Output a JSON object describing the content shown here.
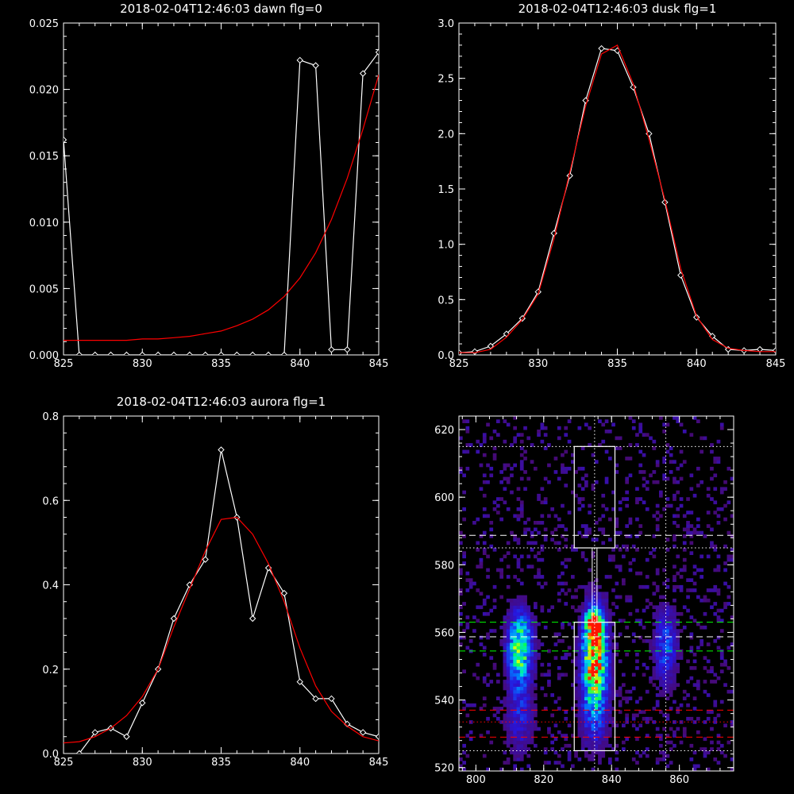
{
  "chart_data": [
    {
      "type": "line",
      "title": "2018-02-04T12:46:03 dawn flg=0",
      "xlim": [
        825,
        845
      ],
      "ylim": [
        0,
        0.025
      ],
      "xticks": [
        "825",
        "830",
        "835",
        "840",
        "845"
      ],
      "yticks": [
        "0.000",
        "0.005",
        "0.010",
        "0.015",
        "0.020",
        "0.025"
      ],
      "series": [
        {
          "color": "#ffffff",
          "markers": "diamond",
          "x": [
            825,
            826,
            827,
            828,
            829,
            830,
            831,
            832,
            833,
            834,
            835,
            836,
            837,
            838,
            839,
            840,
            841,
            842,
            843,
            844,
            845
          ],
          "y": [
            0.0162,
            0.0,
            0.0,
            0.0,
            0.0,
            0.0,
            0.0,
            0.0,
            0.0,
            0.0,
            0.0,
            0.0,
            0.0,
            0.0,
            0.0,
            0.0222,
            0.0218,
            0.0004,
            0.0004,
            0.0212,
            0.0228
          ]
        },
        {
          "color": "#ff0000",
          "markers": "none",
          "x": [
            825,
            826,
            827,
            828,
            829,
            830,
            831,
            832,
            833,
            834,
            835,
            836,
            837,
            838,
            839,
            840,
            841,
            842,
            843,
            844,
            845
          ],
          "y": [
            0.0011,
            0.0011,
            0.0011,
            0.0011,
            0.0011,
            0.0012,
            0.0012,
            0.0013,
            0.0014,
            0.0016,
            0.0018,
            0.0022,
            0.0027,
            0.0034,
            0.0044,
            0.0058,
            0.0077,
            0.0102,
            0.0133,
            0.017,
            0.0211
          ]
        }
      ]
    },
    {
      "type": "line",
      "title": "2018-02-04T12:46:03 dusk flg=1",
      "xlim": [
        825,
        845
      ],
      "ylim": [
        0,
        3.0
      ],
      "xticks": [
        "825",
        "830",
        "835",
        "840",
        "845"
      ],
      "yticks": [
        "0.0",
        "0.5",
        "1.0",
        "1.5",
        "2.0",
        "2.5",
        "3.0"
      ],
      "series": [
        {
          "color": "#ffffff",
          "markers": "diamond",
          "x": [
            825,
            826,
            827,
            828,
            829,
            830,
            831,
            832,
            833,
            834,
            835,
            836,
            837,
            838,
            839,
            840,
            841,
            842,
            843,
            844,
            845
          ],
          "y": [
            0.02,
            0.03,
            0.08,
            0.19,
            0.33,
            0.57,
            1.1,
            1.62,
            2.3,
            2.77,
            2.75,
            2.42,
            2.0,
            1.38,
            0.72,
            0.34,
            0.17,
            0.05,
            0.04,
            0.05,
            0.04
          ]
        },
        {
          "color": "#ff0000",
          "markers": "none",
          "x": [
            825,
            826,
            827,
            828,
            829,
            830,
            831,
            832,
            833,
            834,
            835,
            836,
            837,
            838,
            839,
            840,
            841,
            842,
            843,
            844,
            845
          ],
          "y": [
            0.02,
            0.02,
            0.05,
            0.16,
            0.32,
            0.55,
            1.05,
            1.65,
            2.25,
            2.72,
            2.8,
            2.45,
            1.95,
            1.4,
            0.78,
            0.35,
            0.14,
            0.06,
            0.04,
            0.03,
            0.03
          ]
        }
      ]
    },
    {
      "type": "line",
      "title": "2018-02-04T12:46:03 aurora flg=1",
      "xlim": [
        825,
        845
      ],
      "ylim": [
        0,
        0.8
      ],
      "xticks": [
        "825",
        "830",
        "835",
        "840",
        "845"
      ],
      "yticks": [
        "0.0",
        "0.2",
        "0.4",
        "0.6",
        "0.8"
      ],
      "series": [
        {
          "color": "#ffffff",
          "markers": "diamond",
          "x": [
            825,
            826,
            827,
            828,
            829,
            830,
            831,
            832,
            833,
            834,
            835,
            836,
            837,
            838,
            839,
            840,
            841,
            842,
            843,
            844,
            845
          ],
          "y": [
            -0.02,
            0.0,
            0.05,
            0.06,
            0.04,
            0.12,
            0.2,
            0.32,
            0.4,
            0.46,
            0.72,
            0.56,
            0.32,
            0.44,
            0.38,
            0.17,
            0.13,
            0.13,
            0.07,
            0.05,
            0.04
          ]
        },
        {
          "color": "#ff0000",
          "markers": "none",
          "x": [
            825,
            826,
            827,
            828,
            829,
            830,
            831,
            832,
            833,
            834,
            835,
            836,
            837,
            838,
            839,
            840,
            841,
            842,
            843,
            844,
            845
          ],
          "y": [
            0.025,
            0.028,
            0.04,
            0.06,
            0.09,
            0.135,
            0.2,
            0.3,
            0.39,
            0.48,
            0.555,
            0.56,
            0.52,
            0.45,
            0.36,
            0.25,
            0.16,
            0.1,
            0.065,
            0.04,
            0.03
          ]
        }
      ]
    },
    {
      "type": "heatmap",
      "title": "",
      "xlim": [
        795,
        876
      ],
      "ylim": [
        519,
        624
      ],
      "xticks": [
        "800",
        "820",
        "840",
        "860"
      ],
      "yticks": [
        "520",
        "540",
        "560",
        "580",
        "600",
        "620"
      ],
      "blobs": [
        {
          "x": 813,
          "y": 556,
          "sx": 2.5,
          "sy": 7,
          "a": 0.85
        },
        {
          "x": 835,
          "y": 555,
          "sx": 2.5,
          "sy": 9,
          "a": 1.0
        },
        {
          "x": 835,
          "y": 563,
          "sx": 1.5,
          "sy": 2,
          "a": 1.0
        },
        {
          "x": 835,
          "y": 540,
          "sx": 3,
          "sy": 10,
          "a": 0.45
        },
        {
          "x": 856,
          "y": 556,
          "sx": 2.5,
          "sy": 9,
          "a": 0.4
        },
        {
          "x": 813,
          "y": 536,
          "sx": 3,
          "sy": 9,
          "a": 0.3
        }
      ],
      "boxes": [
        {
          "x0": 829,
          "x1": 841,
          "y0": 585,
          "y1": 615,
          "color": "#ffffff"
        },
        {
          "x0": 829,
          "x1": 841,
          "y0": 525,
          "y1": 563,
          "color": "#ffffff"
        }
      ],
      "vlines": [
        {
          "x": 835,
          "color": "#ffffff",
          "style": "dotted"
        },
        {
          "x": 856,
          "color": "#ffffff",
          "style": "dotted"
        }
      ],
      "hlines": [
        {
          "y": 615,
          "color": "#ffffff",
          "style": "dotted"
        },
        {
          "y": 588.7,
          "color": "#ffffff",
          "style": "dashed"
        },
        {
          "y": 585,
          "color": "#ffffff",
          "style": "dotted"
        },
        {
          "y": 563,
          "color": "#00ff00",
          "style": "dashed"
        },
        {
          "y": 558.7,
          "color": "#ffffff",
          "style": "dashed"
        },
        {
          "y": 554.5,
          "color": "#00ff00",
          "style": "dashed"
        },
        {
          "y": 537,
          "color": "#ff0000",
          "style": "dashed"
        },
        {
          "y": 533.5,
          "color": "#ff0000",
          "style": "dotted"
        },
        {
          "y": 529,
          "color": "#ff0000",
          "style": "dashed"
        },
        {
          "y": 525,
          "color": "#ffffff",
          "style": "dotted"
        }
      ]
    }
  ]
}
